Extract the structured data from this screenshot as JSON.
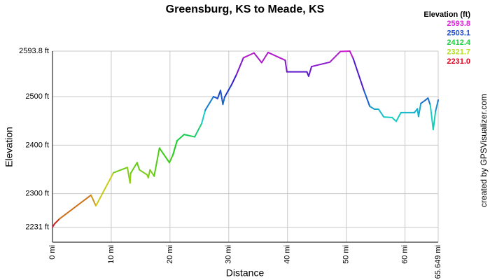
{
  "chart_data": {
    "type": "line",
    "title": "Greensburg, KS to Meade, KS",
    "x_label": "Distance",
    "y_label": "Elevation",
    "credit": "created by GPSVisualizer.com",
    "x": [
      0,
      0.36,
      1.19,
      6.55,
      7.39,
      10.37,
      12.75,
      13.2,
      13.3,
      14.4,
      14.8,
      16.1,
      16.3,
      16.6,
      17.3,
      18.2,
      19.9,
      20.5,
      21.2,
      22.4,
      24.2,
      25.4,
      26.0,
      27.4,
      28.1,
      28.6,
      29.0,
      29.3,
      30.5,
      31.3,
      32.5,
      34.3,
      35.6,
      36.7,
      39.6,
      39.9,
      43.3,
      43.6,
      44.1,
      47.2,
      49.0,
      50.6,
      51.2,
      53.0,
      54.0,
      54.8,
      55.5,
      56.4,
      57.8,
      58.5,
      59.3,
      61.6,
      62.1,
      62.3,
      62.7,
      63.5,
      63.9,
      64.3,
      64.8,
      65.2,
      65.6,
      65.649
    ],
    "values": [
      2231,
      2238,
      2248,
      2297,
      2275,
      2343,
      2354,
      2322,
      2342,
      2364,
      2349,
      2339,
      2333,
      2349,
      2336,
      2394,
      2364,
      2380,
      2409,
      2422,
      2417,
      2445,
      2472,
      2500,
      2496,
      2513,
      2484,
      2499,
      2525,
      2545,
      2580,
      2590,
      2570,
      2591,
      2575,
      2551,
      2551,
      2542,
      2562,
      2571,
      2593,
      2593.8,
      2578,
      2513,
      2480,
      2474,
      2474,
      2458,
      2457,
      2449,
      2467,
      2467,
      2475,
      2459,
      2486,
      2493,
      2497,
      2483,
      2432,
      2470,
      2490,
      2493
    ],
    "xlim": [
      0,
      65.649
    ],
    "xticks": [
      {
        "value": 0,
        "label": "0 mi"
      },
      {
        "value": 10,
        "label": "10 mi"
      },
      {
        "value": 20,
        "label": "20 mi"
      },
      {
        "value": 30,
        "label": "30 mi"
      },
      {
        "value": 40,
        "label": "40 mi"
      },
      {
        "value": 50,
        "label": "50 mi"
      },
      {
        "value": 60,
        "label": "60 mi"
      },
      {
        "value": 65.649,
        "label": "65.649 mi"
      }
    ],
    "ylim": [
      2200,
      2593.8
    ],
    "yticks": [
      {
        "value": 2231,
        "label": "2231 ft"
      },
      {
        "value": 2300,
        "label": "2300 ft"
      },
      {
        "value": 2400,
        "label": "2400 ft"
      },
      {
        "value": 2500,
        "label": "2500 ft"
      },
      {
        "value": 2593.8,
        "label": "2593.8 ft"
      }
    ],
    "grid": true,
    "legend": {
      "title": "Elevation (ft)",
      "entries": [
        {
          "value": 2593.8,
          "label": "2593.8",
          "color": "#e020e0"
        },
        {
          "value": 2503.1,
          "label": "2503.1",
          "color": "#1f4fd0"
        },
        {
          "value": 2412.4,
          "label": "2412.4",
          "color": "#1ed040"
        },
        {
          "value": 2321.7,
          "label": "2321.7",
          "color": "#b4e01e"
        },
        {
          "value": 2231,
          "label": "2231.0",
          "color": "#e8001e"
        }
      ]
    }
  }
}
